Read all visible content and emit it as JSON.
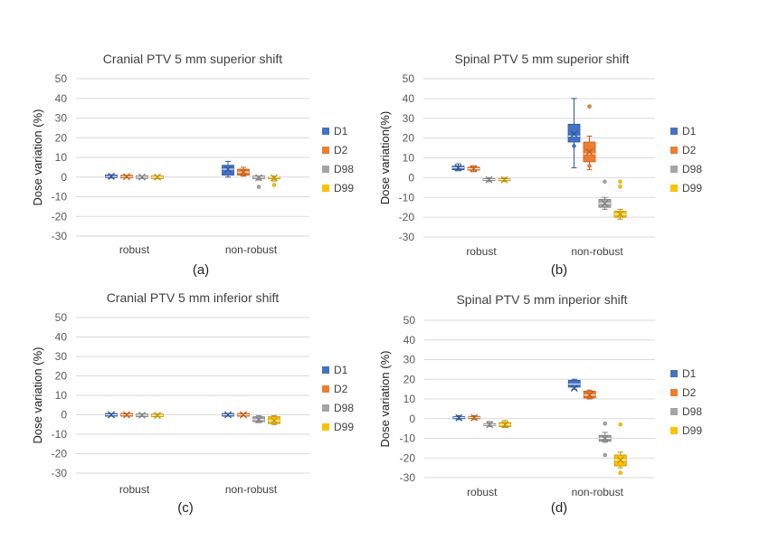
{
  "colors": {
    "D1": "#4472c4",
    "D2": "#ed7d31",
    "D98": "#a5a5a5",
    "D99": "#ffc000"
  },
  "chart_data": [
    {
      "type": "box",
      "title": "Cranial PTV  5 mm superior shift",
      "ylabel": "Dose variation (%)",
      "panel_label": "(a)",
      "ylim": [
        -30,
        50
      ],
      "yticks": [
        "50",
        "40",
        "30",
        "20",
        "10",
        "0",
        "-10",
        "-20",
        "-30"
      ],
      "categories": [
        "robust",
        "non-robust"
      ],
      "legend": [
        "D1",
        "D2",
        "D98",
        "D99"
      ],
      "legend_position": "right",
      "series": [
        {
          "name": "D1",
          "boxes": [
            {
              "min": -0.5,
              "q1": 0,
              "median": 0.3,
              "q3": 0.8,
              "max": 1.2,
              "mean": 0.4,
              "outliers": []
            },
            {
              "min": 0,
              "q1": 1,
              "median": 4,
              "q3": 6,
              "max": 8,
              "mean": 4,
              "outliers": []
            }
          ]
        },
        {
          "name": "D2",
          "boxes": [
            {
              "min": -0.3,
              "q1": 0,
              "median": 0.2,
              "q3": 0.5,
              "max": 0.8,
              "mean": 0.2,
              "outliers": []
            },
            {
              "min": 0.5,
              "q1": 1,
              "median": 2.5,
              "q3": 4,
              "max": 5,
              "mean": 2.5,
              "outliers": []
            }
          ]
        },
        {
          "name": "D98",
          "boxes": [
            {
              "min": -0.6,
              "q1": -0.3,
              "median": 0,
              "q3": 0.2,
              "max": 0.4,
              "mean": 0,
              "outliers": []
            },
            {
              "min": -1.5,
              "q1": -0.5,
              "median": 0,
              "q3": 0.3,
              "max": 0.5,
              "mean": -0.3,
              "outliers": [
                -5
              ]
            }
          ]
        },
        {
          "name": "D99",
          "boxes": [
            {
              "min": -0.6,
              "q1": -0.3,
              "median": 0,
              "q3": 0.2,
              "max": 0.4,
              "mean": 0,
              "outliers": []
            },
            {
              "min": -2,
              "q1": -0.8,
              "median": 0,
              "q3": 0.2,
              "max": 0.5,
              "mean": -0.4,
              "outliers": [
                -4
              ]
            }
          ]
        }
      ]
    },
    {
      "type": "box",
      "title": "Spinal PTV  5 mm superior shift",
      "ylabel": "Dose variation(%)",
      "panel_label": "(b)",
      "ylim": [
        -30,
        50
      ],
      "yticks": [
        "50",
        "40",
        "30",
        "20",
        "10",
        "0",
        "-10",
        "-20",
        "-30"
      ],
      "categories": [
        "robust",
        "non-robust"
      ],
      "legend": [
        "D1",
        "D2",
        "D98",
        "D99"
      ],
      "legend_position": "right",
      "series": [
        {
          "name": "D1",
          "boxes": [
            {
              "min": 3.5,
              "q1": 4,
              "median": 5,
              "q3": 5.8,
              "max": 7,
              "mean": 5,
              "outliers": []
            },
            {
              "min": 5,
              "q1": 18,
              "median": 21,
              "q3": 27,
              "max": 40,
              "mean": 22,
              "outliers": [
                16
              ]
            }
          ]
        },
        {
          "name": "D2",
          "boxes": [
            {
              "min": 3,
              "q1": 3.8,
              "median": 4.5,
              "q3": 5.3,
              "max": 6,
              "mean": 4.5,
              "outliers": []
            },
            {
              "min": 4,
              "q1": 8,
              "median": 12,
              "q3": 18,
              "max": 21,
              "mean": 13,
              "outliers": [
                36,
                6
              ]
            }
          ]
        },
        {
          "name": "D98",
          "boxes": [
            {
              "min": -2,
              "q1": -1.5,
              "median": -1,
              "q3": -0.5,
              "max": 0,
              "mean": -1,
              "outliers": []
            },
            {
              "min": -16,
              "q1": -15,
              "median": -13,
              "q3": -11,
              "max": -10,
              "mean": -13,
              "outliers": [
                -2
              ]
            }
          ]
        },
        {
          "name": "D99",
          "boxes": [
            {
              "min": -2,
              "q1": -1.5,
              "median": -1,
              "q3": -0.5,
              "max": 0,
              "mean": -1,
              "outliers": []
            },
            {
              "min": -21,
              "q1": -20,
              "median": -18.5,
              "q3": -17,
              "max": -16,
              "mean": -18.5,
              "outliers": [
                -2,
                -4.5
              ]
            }
          ]
        }
      ]
    },
    {
      "type": "box",
      "title": "Cranial PTV  5 mm inferior shift",
      "ylabel": "Dose variation (%)",
      "panel_label": "(c)",
      "ylim": [
        -30,
        50
      ],
      "yticks": [
        "50",
        "40",
        "30",
        "20",
        "10",
        "0",
        "-10",
        "-20",
        "-30"
      ],
      "categories": [
        "robust",
        "non-robust"
      ],
      "legend": [
        "D1",
        "D2",
        "D98",
        "D99"
      ],
      "legend_position": "right",
      "series": [
        {
          "name": "D1",
          "boxes": [
            {
              "min": -0.5,
              "q1": -0.2,
              "median": 0,
              "q3": 0.2,
              "max": 0.5,
              "mean": 0,
              "outliers": []
            },
            {
              "min": -0.5,
              "q1": -0.2,
              "median": 0,
              "q3": 0.2,
              "max": 0.5,
              "mean": 0,
              "outliers": []
            }
          ]
        },
        {
          "name": "D2",
          "boxes": [
            {
              "min": -0.5,
              "q1": -0.2,
              "median": 0,
              "q3": 0.2,
              "max": 0.5,
              "mean": 0,
              "outliers": []
            },
            {
              "min": -0.5,
              "q1": -0.2,
              "median": 0,
              "q3": 0.2,
              "max": 0.5,
              "mean": 0,
              "outliers": []
            }
          ]
        },
        {
          "name": "D98",
          "boxes": [
            {
              "min": -0.8,
              "q1": -0.5,
              "median": -0.2,
              "q3": 0,
              "max": 0.3,
              "mean": -0.2,
              "outliers": []
            },
            {
              "min": -4,
              "q1": -3.5,
              "median": -2.5,
              "q3": -1,
              "max": -0.5,
              "mean": -2.5,
              "outliers": []
            }
          ]
        },
        {
          "name": "D99",
          "boxes": [
            {
              "min": -1,
              "q1": -0.6,
              "median": -0.3,
              "q3": 0,
              "max": 0.3,
              "mean": -0.3,
              "outliers": []
            },
            {
              "min": -5,
              "q1": -4.5,
              "median": -3,
              "q3": -1,
              "max": -0.5,
              "mean": -3,
              "outliers": []
            }
          ]
        }
      ]
    },
    {
      "type": "box",
      "title": "Spinal PTV  5 mm inperior shift",
      "ylabel": "Dose variation (%)",
      "panel_label": "(d)",
      "ylim": [
        -30,
        50
      ],
      "yticks": [
        "50",
        "40",
        "30",
        "20",
        "10",
        "0",
        "-10",
        "-20",
        "-30"
      ],
      "categories": [
        "robust",
        "non-robust"
      ],
      "legend": [
        "D1",
        "D2",
        "D98",
        "D99"
      ],
      "legend_position": "right",
      "series": [
        {
          "name": "D1",
          "boxes": [
            {
              "min": -0.5,
              "q1": 0,
              "median": 0.5,
              "q3": 1,
              "max": 1.5,
              "mean": 0.5,
              "outliers": []
            },
            {
              "min": 15,
              "q1": 16,
              "median": 17.5,
              "q3": 19.5,
              "max": 20,
              "mean": 15.5,
              "outliers": []
            }
          ]
        },
        {
          "name": "D2",
          "boxes": [
            {
              "min": -0.5,
              "q1": 0,
              "median": 0.5,
              "q3": 1,
              "max": 1.5,
              "mean": 0.5,
              "outliers": []
            },
            {
              "min": 10,
              "q1": 10.5,
              "median": 12,
              "q3": 14,
              "max": 14.5,
              "mean": 12,
              "outliers": []
            }
          ]
        },
        {
          "name": "D98",
          "boxes": [
            {
              "min": -4,
              "q1": -3.5,
              "median": -3,
              "q3": -2.5,
              "max": -1.5,
              "mean": -3,
              "outliers": []
            },
            {
              "min": -12,
              "q1": -11.5,
              "median": -10,
              "q3": -8.5,
              "max": -7,
              "mean": -10,
              "outliers": [
                -2.5,
                -18.5
              ]
            }
          ]
        },
        {
          "name": "D99",
          "boxes": [
            {
              "min": -4.5,
              "q1": -4,
              "median": -3,
              "q3": -2,
              "max": -1,
              "mean": -3,
              "outliers": []
            },
            {
              "min": -25,
              "q1": -24,
              "median": -21,
              "q3": -18.5,
              "max": -17,
              "mean": -21,
              "outliers": [
                -3,
                -27.5
              ]
            }
          ]
        }
      ]
    }
  ]
}
